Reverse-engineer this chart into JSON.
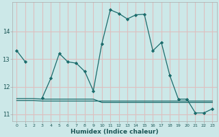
{
  "xlabel": "Humidex (Indice chaleur)",
  "background_color": "#cce8e8",
  "grid_color": "#ddc0c0",
  "line_color": "#1a6b6b",
  "x": [
    0,
    1,
    2,
    3,
    4,
    5,
    6,
    7,
    8,
    9,
    10,
    11,
    12,
    13,
    14,
    15,
    16,
    17,
    18,
    19,
    20,
    21,
    22,
    23
  ],
  "y_main": [
    13.3,
    12.9,
    null,
    11.6,
    12.3,
    13.2,
    12.9,
    12.85,
    12.55,
    11.85,
    13.55,
    14.78,
    14.65,
    14.45,
    14.6,
    14.62,
    13.3,
    13.6,
    12.4,
    11.55,
    11.55,
    11.05,
    11.05,
    11.2
  ],
  "y_flat1": [
    11.5,
    11.5,
    11.5,
    11.48,
    11.48,
    11.48,
    11.48,
    11.48,
    11.48,
    11.48,
    11.48,
    11.48,
    11.48,
    11.48,
    11.48,
    11.48,
    11.48,
    11.48,
    11.48,
    11.48,
    11.48,
    11.48,
    11.48,
    11.48
  ],
  "y_flat2": [
    11.57,
    11.57,
    11.57,
    11.55,
    11.55,
    11.55,
    11.55,
    11.55,
    11.55,
    11.55,
    11.43,
    11.43,
    11.43,
    11.43,
    11.43,
    11.43,
    11.43,
    11.43,
    11.43,
    11.43,
    11.43,
    11.43,
    11.43,
    11.43
  ],
  "ylim": [
    10.75,
    15.05
  ],
  "xlim": [
    -0.5,
    23.5
  ],
  "yticks": [
    11,
    12,
    13,
    14
  ],
  "xticks": [
    0,
    1,
    2,
    3,
    4,
    5,
    6,
    7,
    8,
    9,
    10,
    11,
    12,
    13,
    14,
    15,
    16,
    17,
    18,
    19,
    20,
    21,
    22,
    23
  ]
}
